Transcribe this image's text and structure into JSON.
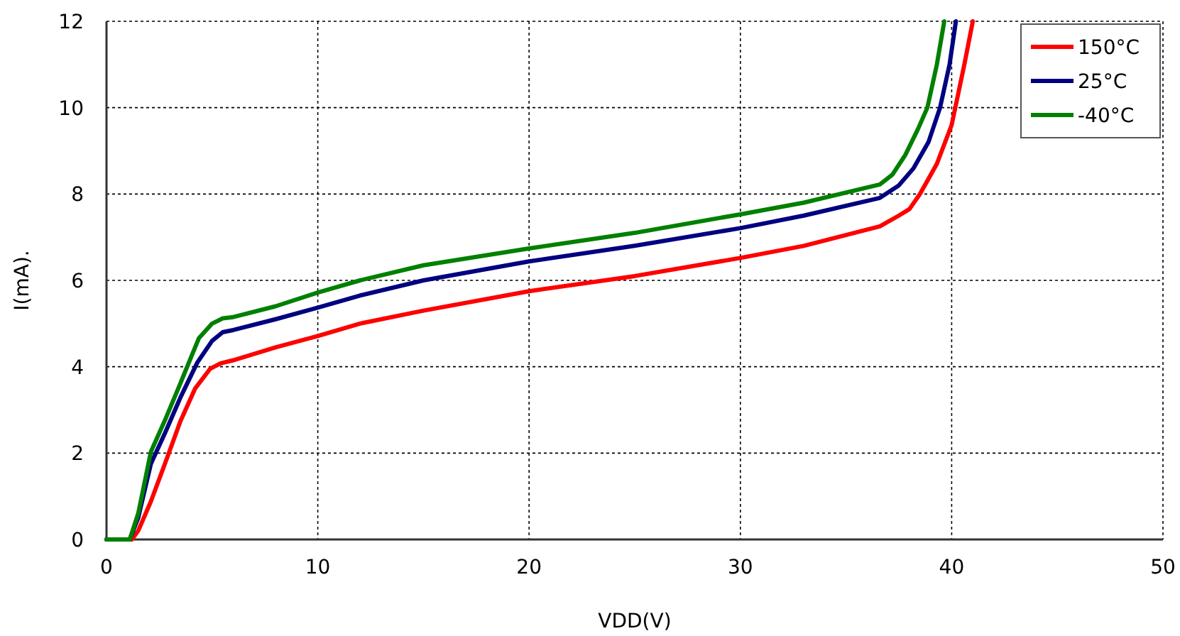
{
  "chart_data": {
    "type": "line",
    "xlabel": "VDD(V)",
    "ylabel": "I(mA).",
    "xlim": [
      0,
      50
    ],
    "ylim": [
      0,
      12
    ],
    "xticks": [
      0,
      10,
      20,
      30,
      40,
      50
    ],
    "yticks": [
      0,
      2,
      4,
      6,
      8,
      10,
      12
    ],
    "grid": true,
    "legend": "top right",
    "marker": "none",
    "line_style": "solid",
    "series": [
      {
        "name": "150°C",
        "color": "#ff0000",
        "x": [
          0,
          1.2,
          1.5,
          2.1,
          2.8,
          3.5,
          4.2,
          4.9,
          5.4,
          6,
          8,
          10,
          12,
          15,
          20,
          25,
          30,
          33,
          36.6,
          37.5,
          38,
          38.5,
          39.3,
          40,
          40.6,
          41
        ],
        "values": [
          0,
          0,
          0.2,
          0.88,
          1.8,
          2.74,
          3.5,
          3.95,
          4.08,
          4.15,
          4.45,
          4.71,
          5.0,
          5.3,
          5.75,
          6.1,
          6.52,
          6.8,
          7.25,
          7.5,
          7.65,
          8.0,
          8.7,
          9.6,
          11,
          12
        ]
      },
      {
        "name": "25°C",
        "color": "#000080",
        "x": [
          0,
          1.1,
          1.5,
          2.1,
          2.8,
          3.5,
          4.3,
          5,
          5.5,
          6,
          8,
          10,
          12,
          15,
          20,
          25,
          30,
          33,
          36.6,
          37.5,
          38.2,
          38.9,
          39.45,
          39.9,
          40.2
        ],
        "values": [
          0,
          0,
          0.5,
          1.75,
          2.5,
          3.29,
          4.1,
          4.6,
          4.8,
          4.85,
          5.1,
          5.37,
          5.65,
          6.0,
          6.44,
          6.8,
          7.21,
          7.5,
          7.91,
          8.2,
          8.6,
          9.2,
          10,
          11,
          12
        ]
      },
      {
        "name": "-40°C",
        "color": "#008000",
        "x": [
          0,
          1.1,
          1.5,
          2.1,
          2.8,
          3.5,
          4.37,
          5,
          5.5,
          6,
          8,
          10,
          12,
          15,
          20,
          25,
          30,
          33,
          36.6,
          37.2,
          37.8,
          38.4,
          38.85,
          39.3,
          39.65
        ],
        "values": [
          0,
          0,
          0.6,
          2.03,
          2.8,
          3.62,
          4.66,
          5.0,
          5.12,
          5.15,
          5.4,
          5.72,
          6.0,
          6.35,
          6.74,
          7.1,
          7.53,
          7.8,
          8.22,
          8.45,
          8.9,
          9.5,
          10,
          11,
          12
        ]
      }
    ]
  }
}
